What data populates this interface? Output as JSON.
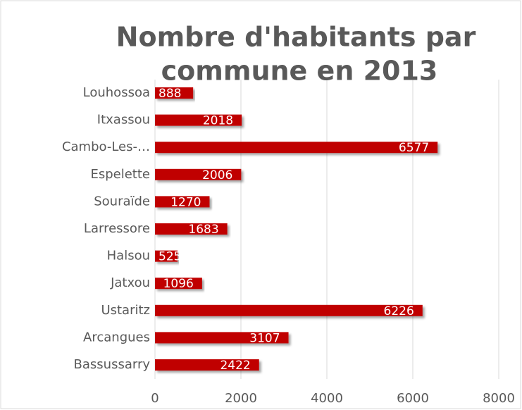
{
  "chart_data": {
    "type": "bar",
    "orientation": "horizontal",
    "title_lines": [
      "Nombre d'habitants par",
      "commune en 2013"
    ],
    "categories": [
      "Louhossoa",
      "Itxassou",
      "Cambo-Les-…",
      "Espelette",
      "Souraïde",
      "Larressore",
      "Halsou",
      "Jatxou",
      "Ustaritz",
      "Arcangues",
      "Bassussarry"
    ],
    "values": [
      888,
      2018,
      6577,
      2006,
      1270,
      1683,
      525,
      1096,
      6226,
      3107,
      2422
    ],
    "color": "#c00000",
    "xlim": [
      0,
      8000
    ],
    "xticks": [
      0,
      2000,
      4000,
      6000,
      8000
    ],
    "grid": true
  }
}
